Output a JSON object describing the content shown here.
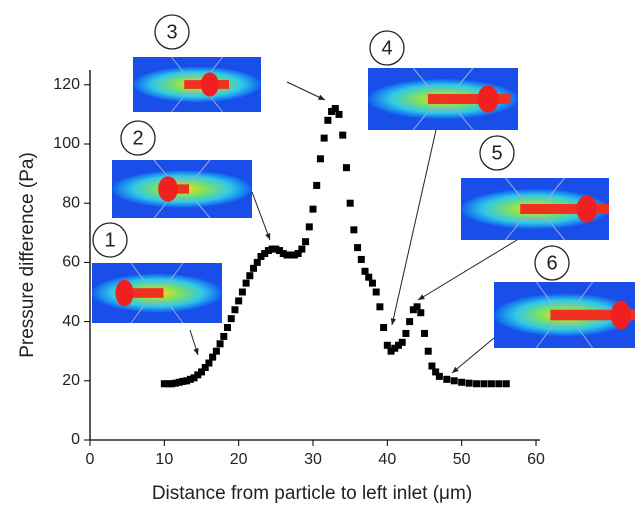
{
  "chart_data": {
    "type": "scatter",
    "x_label": "Distance from particle to left inlet (μm)",
    "y_label": "Pressure difference (Pa)",
    "xlim": [
      0,
      60
    ],
    "xticks": [
      0,
      10,
      20,
      30,
      40,
      50,
      60
    ],
    "ylim": [
      0,
      125
    ],
    "yticks": [
      0,
      20,
      40,
      60,
      80,
      100,
      120
    ],
    "marker": "square",
    "grid": false,
    "annotations": [
      "1",
      "2",
      "3",
      "4",
      "5",
      "6"
    ],
    "series": [
      {
        "color": "#000000",
        "x": [
          10,
          10.5,
          11,
          11.5,
          12,
          12.5,
          13,
          13.5,
          14,
          14.5,
          15,
          15.5,
          16,
          16.5,
          17,
          17.5,
          18,
          18.5,
          19,
          19.5,
          20,
          20.5,
          21,
          21.5,
          22,
          22.5,
          23,
          23.5,
          24,
          24.5,
          25,
          25.5,
          26,
          26.5,
          27,
          27.5,
          28,
          28.5,
          29,
          29.5,
          30,
          30.5,
          31,
          31.5,
          32,
          32.5,
          33,
          33.5,
          34,
          34.5,
          35,
          35.5,
          36,
          36.5,
          37,
          37.5,
          38,
          38.5,
          39,
          39.5,
          40,
          40.5,
          41,
          41.5,
          42,
          42.5,
          43,
          43.5,
          44,
          44.5,
          45,
          45.5,
          46,
          46.5,
          47,
          48,
          49,
          50,
          51,
          52,
          53,
          54,
          55,
          56
        ],
        "values": [
          19,
          19,
          19,
          19.2,
          19.5,
          19.8,
          20,
          20.5,
          21,
          22,
          23,
          24.5,
          26,
          28,
          30,
          32.5,
          35,
          38,
          41,
          44,
          47,
          50,
          53,
          55.5,
          58,
          60,
          62,
          63,
          64,
          64.5,
          64.5,
          64,
          63,
          62.5,
          62.5,
          62.5,
          63,
          64.5,
          67,
          72,
          78,
          86,
          95,
          102,
          108,
          111,
          112,
          110,
          103,
          92,
          80,
          71,
          65,
          61,
          57,
          55,
          53,
          50,
          45,
          38,
          32,
          30,
          31,
          32,
          33,
          36,
          40,
          44,
          45,
          43,
          36,
          30,
          25,
          23,
          21.5,
          20.5,
          20,
          19.5,
          19.2,
          19,
          19,
          19,
          19,
          19
        ]
      }
    ]
  }
}
